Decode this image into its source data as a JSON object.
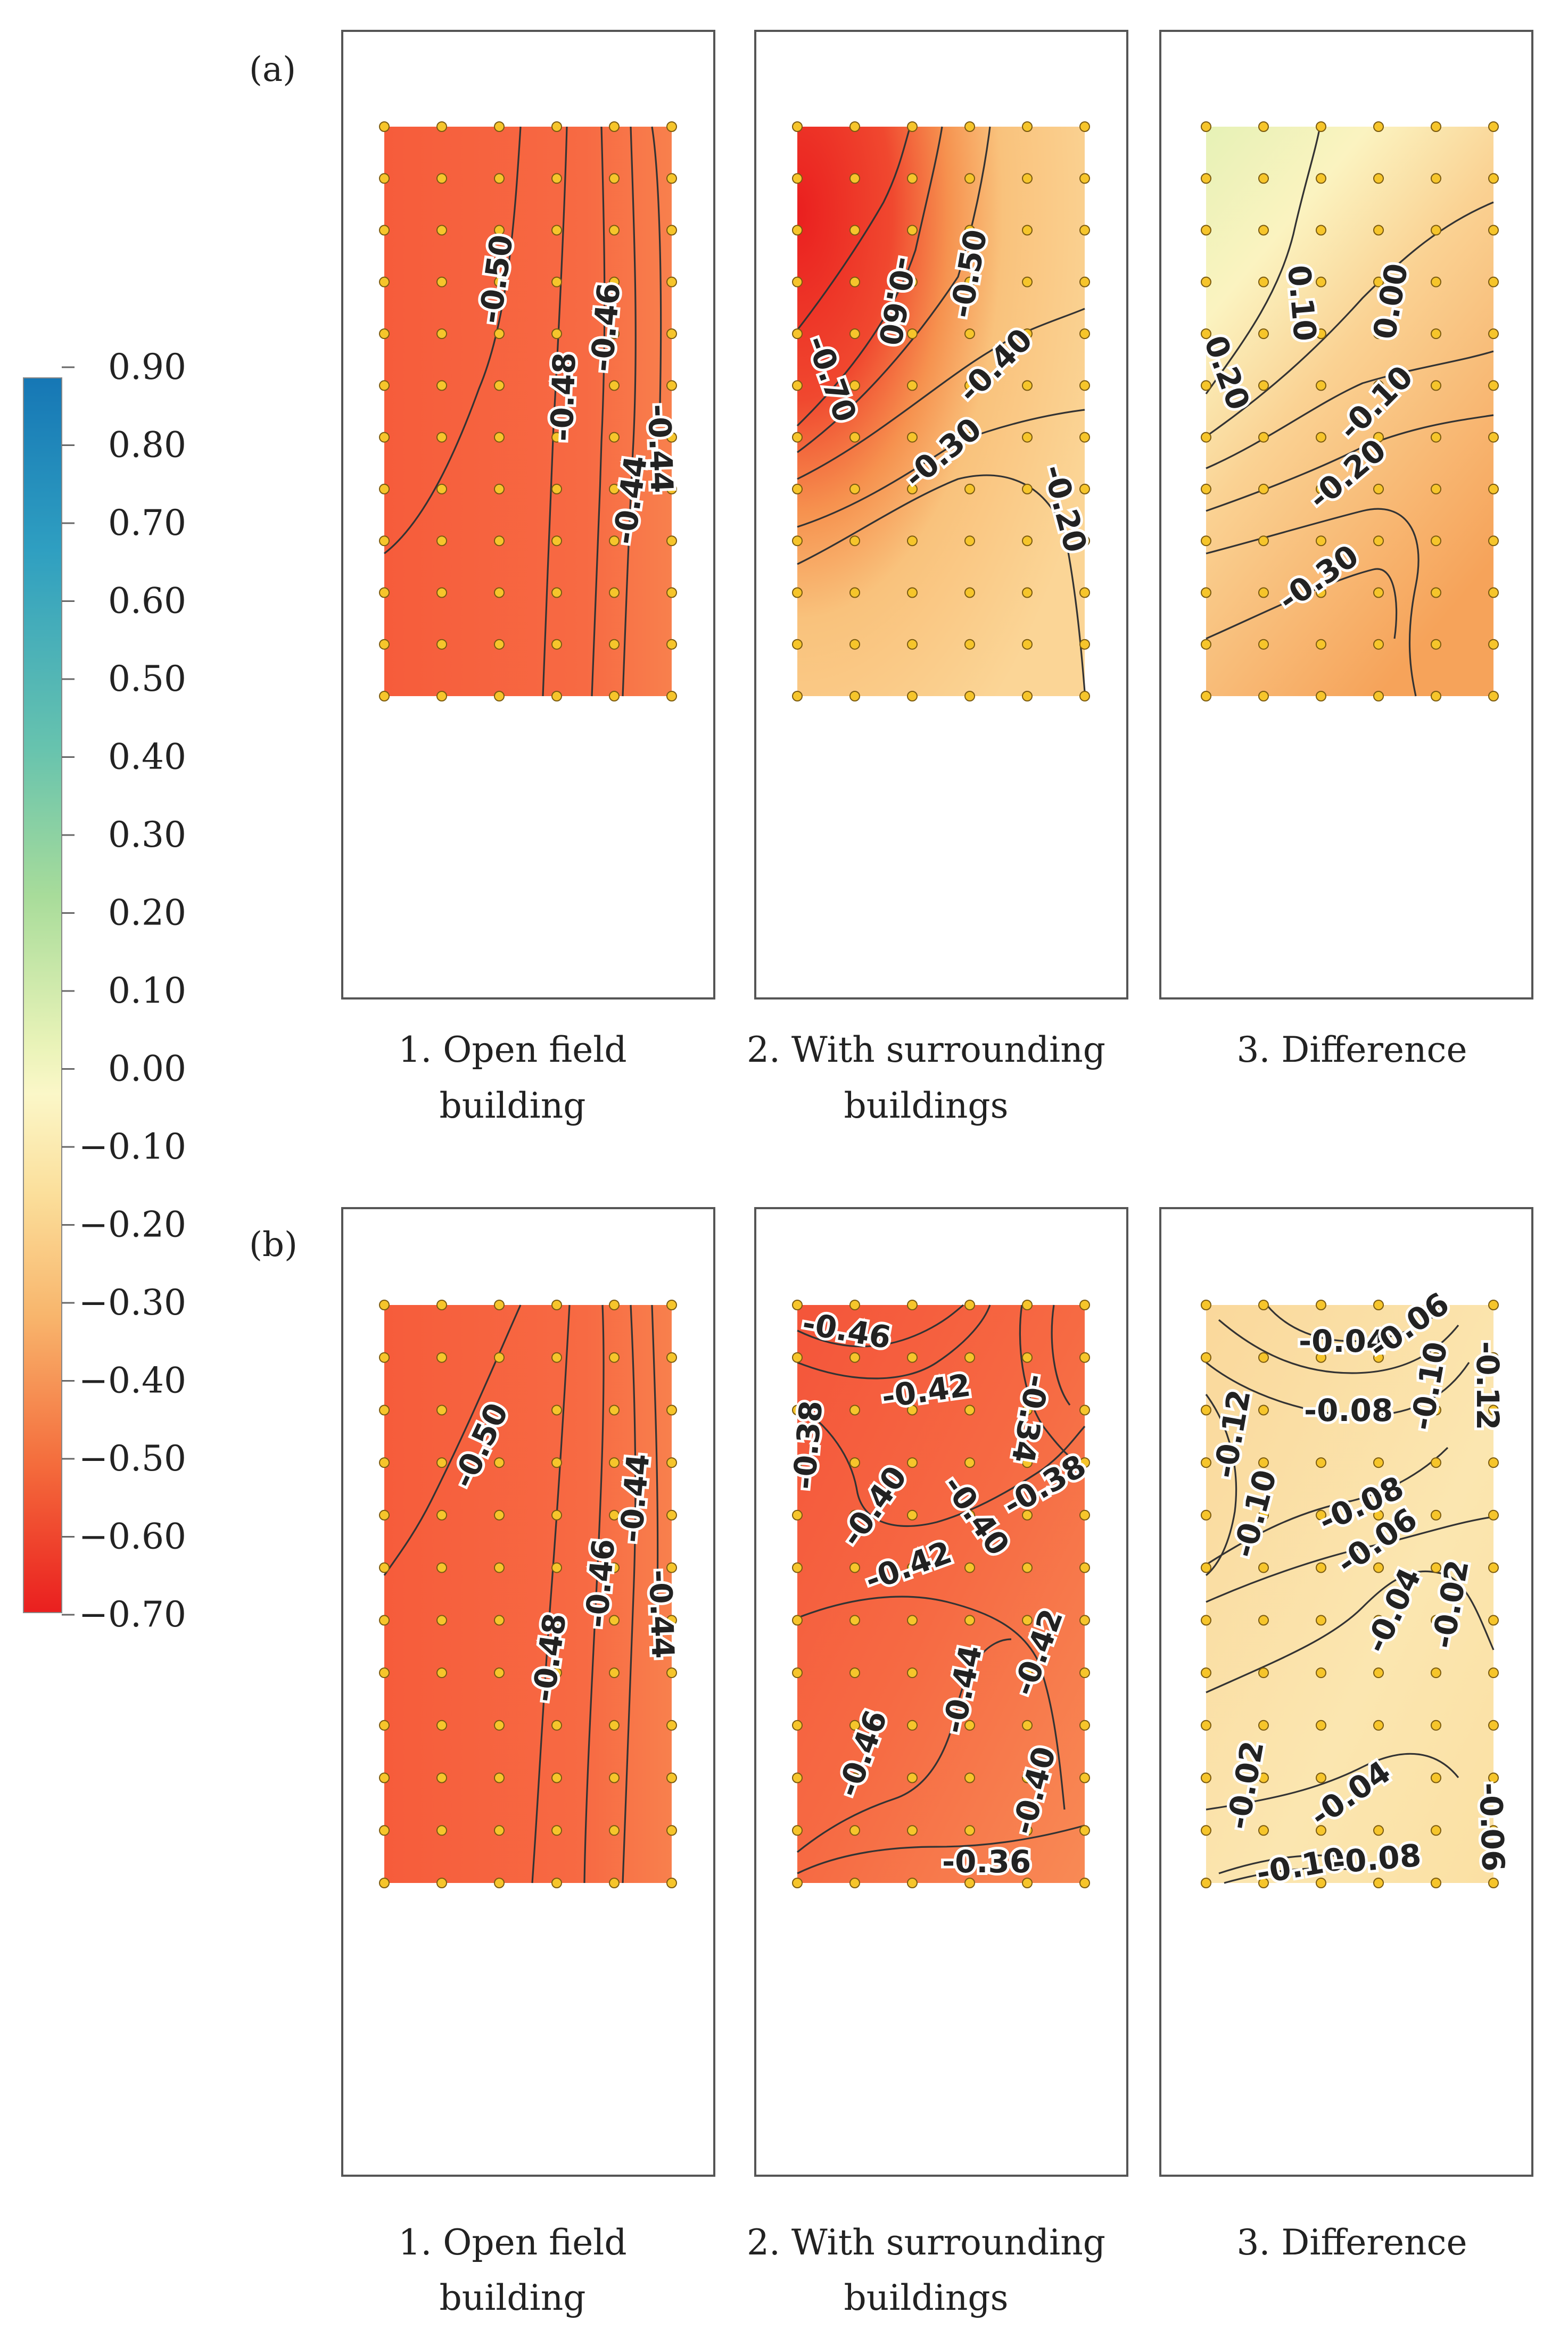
{
  "colorbar": {
    "ticks": [
      "0.90",
      "0.80",
      "0.70",
      "0.60",
      "0.50",
      "0.40",
      "0.30",
      "0.20",
      "0.10",
      "0.00",
      "−0.10",
      "−0.20",
      "−0.30",
      "−0.40",
      "−0.50",
      "−0.60",
      "−0.70"
    ],
    "range": [
      -0.7,
      0.9
    ],
    "colors": {
      "top": "#1a7ab8",
      "upper": "#39a8c2",
      "mid_high": "#8ed29b",
      "mid": "#f8f6bf",
      "low": "#f8c07a",
      "lower": "#f4733e",
      "bottom": "#ea1f1f"
    }
  },
  "rows": [
    {
      "label": "(a)",
      "panels": [
        {
          "caption_lines": [
            "1. Open field",
            "building"
          ],
          "fill": "#f76541",
          "contour_labels": [
            "-0.50",
            "-0.48",
            "-0.46",
            "-0.44",
            "-0.44"
          ]
        },
        {
          "caption_lines": [
            "2. With surrounding",
            "buildings"
          ],
          "fill": "#f8c07a",
          "contour_labels": [
            "-0.70",
            "-0.60",
            "-0.50",
            "-0.40",
            "-0.30",
            "-0.20"
          ]
        },
        {
          "caption_lines": [
            "3. Difference"
          ],
          "fill": "#f9d795",
          "contour_labels": [
            "0.20",
            "0.10",
            "0.00",
            "-0.10",
            "-0.20",
            "-0.30"
          ]
        }
      ]
    },
    {
      "label": "(b)",
      "panels": [
        {
          "caption_lines": [
            "1. Open field",
            "building"
          ],
          "fill": "#f76541",
          "contour_labels": [
            "-0.50",
            "-0.48",
            "-0.46",
            "-0.44",
            "-0.44"
          ]
        },
        {
          "caption_lines": [
            "2. With surrounding",
            "buildings"
          ],
          "fill": "#f66a43",
          "contour_labels": [
            "-0.46",
            "-0.42",
            "-0.34",
            "-0.38",
            "-0.40",
            "-0.40",
            "-0.38",
            "-0.42",
            "-0.44",
            "-0.42",
            "-0.46",
            "-0.40",
            "-0.36"
          ]
        },
        {
          "caption_lines": [
            "3. Difference"
          ],
          "fill": "#fbe3a8",
          "contour_labels": [
            "-0.04",
            "-0.06",
            "-0.12",
            "-0.08",
            "-0.10",
            "-0.12",
            "-0.10",
            "-0.08",
            "-0.06",
            "-0.02",
            "-0.04",
            "-0.02",
            "-0.04",
            "-0.06",
            "-0.10",
            "-0.08"
          ]
        }
      ]
    }
  ]
}
